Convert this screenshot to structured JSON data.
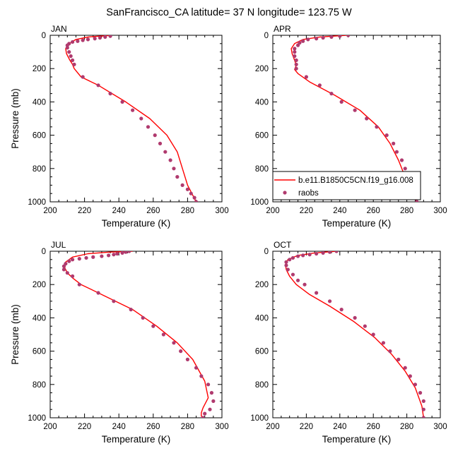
{
  "figure_title": "SanFrancisco_CA  latitude= 37 N longitude= 123.75 W",
  "chart_data": [
    {
      "type": "line",
      "title": "JAN",
      "xlabel": "Temperature (K)",
      "ylabel": "Pressure (mb)",
      "xlim": [
        200,
        300
      ],
      "ylim": [
        1000,
        0
      ],
      "x_ticks": [
        200,
        220,
        240,
        260,
        280,
        300
      ],
      "y_ticks": [
        0,
        200,
        400,
        600,
        800,
        1000
      ],
      "y_reversed": true,
      "series": [
        {
          "style": "line",
          "color": "#ff0000",
          "x": [
            236,
            222,
            215,
            211,
            209,
            209.5,
            211.5,
            213,
            214,
            218,
            228,
            244,
            258,
            268,
            274,
            277,
            280,
            283,
            285
          ],
          "y": [
            0,
            10,
            25,
            50,
            80,
            110,
            150,
            175,
            200,
            250,
            300,
            400,
            500,
            600,
            700,
            800,
            900,
            960,
            1000
          ]
        },
        {
          "style": "markers",
          "color": "#b03a6e",
          "x": [
            235,
            232,
            229,
            226,
            222,
            219,
            216,
            213,
            211,
            210,
            210,
            211,
            212,
            213,
            214,
            219,
            228,
            235,
            242,
            248,
            253,
            257,
            261,
            264,
            267,
            270,
            272,
            274,
            277,
            280,
            282,
            284,
            285
          ],
          "y": [
            5,
            10,
            15,
            20,
            25,
            30,
            35,
            40,
            50,
            60,
            75,
            100,
            125,
            150,
            175,
            250,
            300,
            350,
            400,
            450,
            500,
            550,
            600,
            650,
            700,
            750,
            800,
            850,
            900,
            925,
            950,
            975,
            1000
          ]
        }
      ]
    },
    {
      "type": "line",
      "title": "APR",
      "xlabel": "Temperature (K)",
      "ylabel": "",
      "xlim": [
        200,
        300
      ],
      "ylim": [
        1000,
        0
      ],
      "x_ticks": [
        200,
        220,
        240,
        260,
        280,
        300
      ],
      "y_ticks": [
        0,
        200,
        400,
        600,
        800,
        1000
      ],
      "y_reversed": true,
      "legend": {
        "entries": [
          {
            "label": "b.e11.B1850C5CN.f19_g16.008",
            "kind": "line",
            "color": "#ff0000"
          },
          {
            "label": "raobs",
            "kind": "marker",
            "color": "#b03a6e"
          }
        ],
        "placement": "lower-right"
      },
      "series": [
        {
          "style": "line",
          "color": "#ff0000",
          "x": [
            244,
            228,
            218,
            213,
            211,
            211.5,
            213,
            214,
            213,
            215,
            222,
            237,
            252,
            263,
            270,
            275,
            279,
            283,
            286
          ],
          "y": [
            0,
            10,
            25,
            50,
            80,
            110,
            150,
            180,
            205,
            230,
            280,
            360,
            450,
            550,
            650,
            750,
            850,
            950,
            1000
          ]
        },
        {
          "style": "markers",
          "color": "#b03a6e",
          "x": [
            245,
            240,
            235,
            230,
            226,
            221,
            218,
            216,
            215,
            213,
            213,
            213,
            214,
            214,
            214,
            220,
            228,
            235,
            241,
            249,
            256,
            262,
            268,
            272,
            274,
            277,
            279,
            280,
            282,
            284,
            286,
            286
          ],
          "y": [
            0,
            5,
            10,
            15,
            20,
            25,
            35,
            45,
            60,
            80,
            100,
            125,
            150,
            175,
            200,
            250,
            300,
            350,
            400,
            450,
            500,
            550,
            600,
            650,
            700,
            750,
            800,
            850,
            900,
            950,
            975,
            1000
          ]
        }
      ]
    },
    {
      "type": "line",
      "title": "JUL",
      "xlabel": "Temperature (K)",
      "ylabel": "Pressure (mb)",
      "xlim": [
        200,
        300
      ],
      "ylim": [
        1000,
        0
      ],
      "x_ticks": [
        200,
        220,
        240,
        260,
        280,
        300
      ],
      "y_ticks": [
        0,
        200,
        400,
        600,
        800,
        1000
      ],
      "y_reversed": true,
      "series": [
        {
          "style": "line",
          "color": "#ff0000",
          "x": [
            248,
            235,
            222,
            213,
            209,
            208.5,
            210,
            213,
            218,
            232,
            248,
            262,
            274,
            283,
            290,
            292,
            289,
            288,
            288,
            289
          ],
          "y": [
            0,
            5,
            15,
            35,
            65,
            100,
            130,
            160,
            200,
            270,
            350,
            450,
            550,
            650,
            780,
            880,
            940,
            970,
            990,
            1000
          ]
        },
        {
          "style": "markers",
          "color": "#b03a6e",
          "x": [
            246,
            244,
            242,
            239,
            237,
            234,
            230,
            225,
            221,
            217,
            213,
            211,
            209,
            208,
            208,
            210,
            213,
            217,
            228,
            237,
            247,
            254,
            260,
            266,
            272,
            276,
            280,
            285,
            288,
            292,
            294,
            295,
            293,
            290,
            289
          ],
          "y": [
            0,
            5,
            10,
            15,
            20,
            25,
            30,
            35,
            40,
            45,
            50,
            60,
            75,
            90,
            110,
            130,
            150,
            200,
            250,
            300,
            350,
            400,
            450,
            500,
            550,
            600,
            650,
            700,
            750,
            800,
            850,
            900,
            950,
            975,
            1000
          ]
        }
      ]
    },
    {
      "type": "line",
      "title": "OCT",
      "xlabel": "Temperature (K)",
      "ylabel": "",
      "xlim": [
        200,
        300
      ],
      "ylim": [
        1000,
        0
      ],
      "x_ticks": [
        200,
        220,
        240,
        260,
        280,
        300
      ],
      "y_ticks": [
        0,
        200,
        400,
        600,
        800,
        1000
      ],
      "y_reversed": true,
      "series": [
        {
          "style": "line",
          "color": "#ff0000",
          "x": [
            238,
            225,
            215,
            209,
            207.5,
            208,
            210,
            214,
            222,
            234,
            248,
            261,
            271,
            279,
            285,
            289,
            290
          ],
          "y": [
            0,
            10,
            25,
            50,
            80,
            110,
            150,
            200,
            260,
            330,
            420,
            520,
            620,
            720,
            820,
            930,
            1000
          ]
        },
        {
          "style": "markers",
          "color": "#b03a6e",
          "x": [
            238,
            234,
            230,
            226,
            222,
            218,
            215,
            212,
            210,
            208,
            208,
            209,
            212,
            215,
            219,
            226,
            234,
            241,
            249,
            255,
            260,
            266,
            270,
            275,
            279,
            282,
            285,
            288,
            290,
            290,
            290
          ],
          "y": [
            0,
            5,
            10,
            15,
            20,
            25,
            30,
            40,
            50,
            65,
            85,
            110,
            140,
            175,
            200,
            250,
            300,
            350,
            400,
            450,
            500,
            550,
            600,
            650,
            700,
            750,
            800,
            850,
            900,
            950,
            1000
          ]
        }
      ]
    }
  ]
}
